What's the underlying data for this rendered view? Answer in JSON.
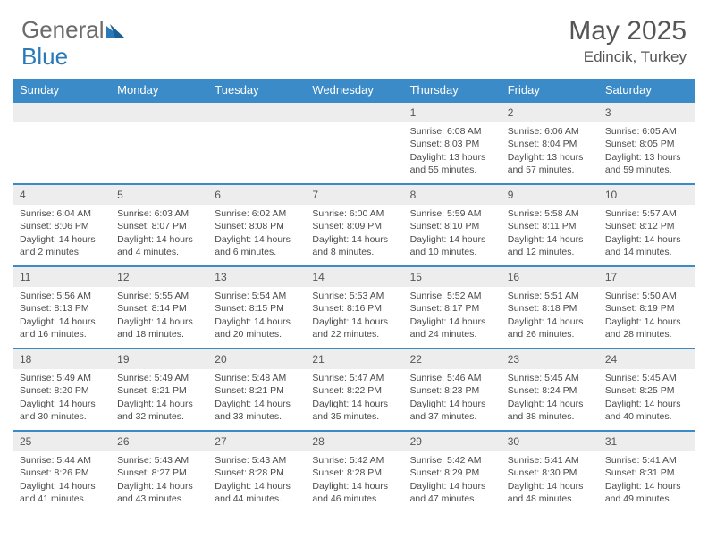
{
  "logo": {
    "word1": "General",
    "word2": "Blue"
  },
  "header": {
    "title": "May 2025",
    "location": "Edincik, Turkey"
  },
  "weekdays": [
    "Sunday",
    "Monday",
    "Tuesday",
    "Wednesday",
    "Thursday",
    "Friday",
    "Saturday"
  ],
  "colors": {
    "header_bg": "#3b8bc8",
    "header_text": "#ffffff",
    "daynum_bg": "#ededed",
    "row_border": "#3b8bc8",
    "body_text": "#4a4a4a",
    "logo_gray": "#6b6b6b",
    "logo_blue": "#2a7ab9"
  },
  "weeks": [
    [
      null,
      null,
      null,
      null,
      {
        "n": "1",
        "sunrise": "Sunrise: 6:08 AM",
        "sunset": "Sunset: 8:03 PM",
        "day1": "Daylight: 13 hours",
        "day2": "and 55 minutes."
      },
      {
        "n": "2",
        "sunrise": "Sunrise: 6:06 AM",
        "sunset": "Sunset: 8:04 PM",
        "day1": "Daylight: 13 hours",
        "day2": "and 57 minutes."
      },
      {
        "n": "3",
        "sunrise": "Sunrise: 6:05 AM",
        "sunset": "Sunset: 8:05 PM",
        "day1": "Daylight: 13 hours",
        "day2": "and 59 minutes."
      }
    ],
    [
      {
        "n": "4",
        "sunrise": "Sunrise: 6:04 AM",
        "sunset": "Sunset: 8:06 PM",
        "day1": "Daylight: 14 hours",
        "day2": "and 2 minutes."
      },
      {
        "n": "5",
        "sunrise": "Sunrise: 6:03 AM",
        "sunset": "Sunset: 8:07 PM",
        "day1": "Daylight: 14 hours",
        "day2": "and 4 minutes."
      },
      {
        "n": "6",
        "sunrise": "Sunrise: 6:02 AM",
        "sunset": "Sunset: 8:08 PM",
        "day1": "Daylight: 14 hours",
        "day2": "and 6 minutes."
      },
      {
        "n": "7",
        "sunrise": "Sunrise: 6:00 AM",
        "sunset": "Sunset: 8:09 PM",
        "day1": "Daylight: 14 hours",
        "day2": "and 8 minutes."
      },
      {
        "n": "8",
        "sunrise": "Sunrise: 5:59 AM",
        "sunset": "Sunset: 8:10 PM",
        "day1": "Daylight: 14 hours",
        "day2": "and 10 minutes."
      },
      {
        "n": "9",
        "sunrise": "Sunrise: 5:58 AM",
        "sunset": "Sunset: 8:11 PM",
        "day1": "Daylight: 14 hours",
        "day2": "and 12 minutes."
      },
      {
        "n": "10",
        "sunrise": "Sunrise: 5:57 AM",
        "sunset": "Sunset: 8:12 PM",
        "day1": "Daylight: 14 hours",
        "day2": "and 14 minutes."
      }
    ],
    [
      {
        "n": "11",
        "sunrise": "Sunrise: 5:56 AM",
        "sunset": "Sunset: 8:13 PM",
        "day1": "Daylight: 14 hours",
        "day2": "and 16 minutes."
      },
      {
        "n": "12",
        "sunrise": "Sunrise: 5:55 AM",
        "sunset": "Sunset: 8:14 PM",
        "day1": "Daylight: 14 hours",
        "day2": "and 18 minutes."
      },
      {
        "n": "13",
        "sunrise": "Sunrise: 5:54 AM",
        "sunset": "Sunset: 8:15 PM",
        "day1": "Daylight: 14 hours",
        "day2": "and 20 minutes."
      },
      {
        "n": "14",
        "sunrise": "Sunrise: 5:53 AM",
        "sunset": "Sunset: 8:16 PM",
        "day1": "Daylight: 14 hours",
        "day2": "and 22 minutes."
      },
      {
        "n": "15",
        "sunrise": "Sunrise: 5:52 AM",
        "sunset": "Sunset: 8:17 PM",
        "day1": "Daylight: 14 hours",
        "day2": "and 24 minutes."
      },
      {
        "n": "16",
        "sunrise": "Sunrise: 5:51 AM",
        "sunset": "Sunset: 8:18 PM",
        "day1": "Daylight: 14 hours",
        "day2": "and 26 minutes."
      },
      {
        "n": "17",
        "sunrise": "Sunrise: 5:50 AM",
        "sunset": "Sunset: 8:19 PM",
        "day1": "Daylight: 14 hours",
        "day2": "and 28 minutes."
      }
    ],
    [
      {
        "n": "18",
        "sunrise": "Sunrise: 5:49 AM",
        "sunset": "Sunset: 8:20 PM",
        "day1": "Daylight: 14 hours",
        "day2": "and 30 minutes."
      },
      {
        "n": "19",
        "sunrise": "Sunrise: 5:49 AM",
        "sunset": "Sunset: 8:21 PM",
        "day1": "Daylight: 14 hours",
        "day2": "and 32 minutes."
      },
      {
        "n": "20",
        "sunrise": "Sunrise: 5:48 AM",
        "sunset": "Sunset: 8:21 PM",
        "day1": "Daylight: 14 hours",
        "day2": "and 33 minutes."
      },
      {
        "n": "21",
        "sunrise": "Sunrise: 5:47 AM",
        "sunset": "Sunset: 8:22 PM",
        "day1": "Daylight: 14 hours",
        "day2": "and 35 minutes."
      },
      {
        "n": "22",
        "sunrise": "Sunrise: 5:46 AM",
        "sunset": "Sunset: 8:23 PM",
        "day1": "Daylight: 14 hours",
        "day2": "and 37 minutes."
      },
      {
        "n": "23",
        "sunrise": "Sunrise: 5:45 AM",
        "sunset": "Sunset: 8:24 PM",
        "day1": "Daylight: 14 hours",
        "day2": "and 38 minutes."
      },
      {
        "n": "24",
        "sunrise": "Sunrise: 5:45 AM",
        "sunset": "Sunset: 8:25 PM",
        "day1": "Daylight: 14 hours",
        "day2": "and 40 minutes."
      }
    ],
    [
      {
        "n": "25",
        "sunrise": "Sunrise: 5:44 AM",
        "sunset": "Sunset: 8:26 PM",
        "day1": "Daylight: 14 hours",
        "day2": "and 41 minutes."
      },
      {
        "n": "26",
        "sunrise": "Sunrise: 5:43 AM",
        "sunset": "Sunset: 8:27 PM",
        "day1": "Daylight: 14 hours",
        "day2": "and 43 minutes."
      },
      {
        "n": "27",
        "sunrise": "Sunrise: 5:43 AM",
        "sunset": "Sunset: 8:28 PM",
        "day1": "Daylight: 14 hours",
        "day2": "and 44 minutes."
      },
      {
        "n": "28",
        "sunrise": "Sunrise: 5:42 AM",
        "sunset": "Sunset: 8:28 PM",
        "day1": "Daylight: 14 hours",
        "day2": "and 46 minutes."
      },
      {
        "n": "29",
        "sunrise": "Sunrise: 5:42 AM",
        "sunset": "Sunset: 8:29 PM",
        "day1": "Daylight: 14 hours",
        "day2": "and 47 minutes."
      },
      {
        "n": "30",
        "sunrise": "Sunrise: 5:41 AM",
        "sunset": "Sunset: 8:30 PM",
        "day1": "Daylight: 14 hours",
        "day2": "and 48 minutes."
      },
      {
        "n": "31",
        "sunrise": "Sunrise: 5:41 AM",
        "sunset": "Sunset: 8:31 PM",
        "day1": "Daylight: 14 hours",
        "day2": "and 49 minutes."
      }
    ]
  ]
}
